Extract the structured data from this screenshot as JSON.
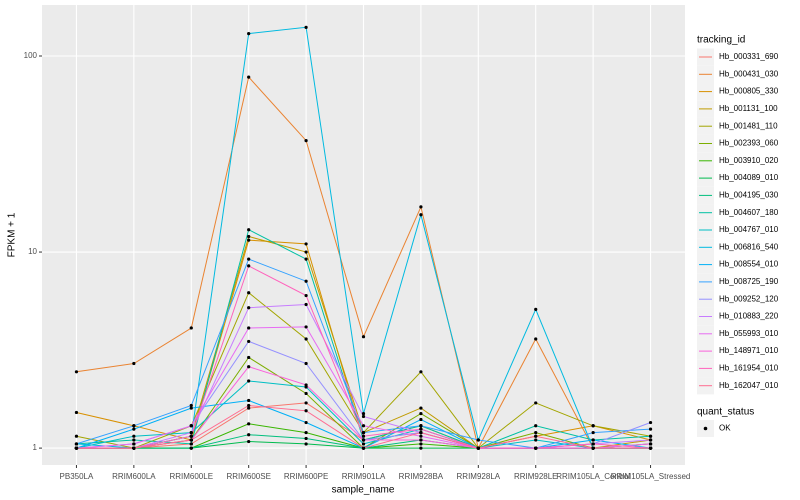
{
  "chart_data": {
    "type": "line",
    "x_label": "sample_name",
    "y_label": "FPKM + 1",
    "categories": [
      "PB350LA",
      "RRIM600LA",
      "RRIM600LE",
      "RRIM600SE",
      "RRIM600PE",
      "RRIM901LA",
      "RRIM928BA",
      "RRIM928LA",
      "RRIM928LE",
      "RRIM105LA_Control",
      "RRIM105LA_Stressed"
    ],
    "ylim": [
      0.82,
      182
    ],
    "yticks": [
      1,
      10,
      100
    ],
    "log_scale": true,
    "grid": true,
    "legend_title": "tracking_id",
    "legend_position": "right",
    "point_legend_title": "quant_status",
    "point_legend_label": "OK",
    "point_color": "#000000",
    "series": [
      {
        "name": "Hb_000331_690",
        "color": "#F8766D",
        "values": [
          1.0,
          1.0,
          1.05,
          1.6,
          1.7,
          1.1,
          1.2,
          1.0,
          1.0,
          1.0,
          1.05
        ]
      },
      {
        "name": "Hb_000431_030",
        "color": "#EA8331",
        "values": [
          2.45,
          2.7,
          4.1,
          78,
          37,
          3.7,
          17,
          1.0,
          3.6,
          1.0,
          1.0
        ]
      },
      {
        "name": "Hb_000805_330",
        "color": "#D89000",
        "values": [
          1.52,
          1.3,
          1.1,
          11.5,
          11,
          1.1,
          1.3,
          1.0,
          1.15,
          1.3,
          1.1
        ]
      },
      {
        "name": "Hb_001131_100",
        "color": "#C09B00",
        "values": [
          1.0,
          1.0,
          1.15,
          12,
          10,
          1.2,
          1.6,
          1.0,
          1.0,
          1.0,
          1.1
        ]
      },
      {
        "name": "Hb_001481_110",
        "color": "#A3A500",
        "values": [
          1.15,
          1.0,
          1.3,
          6.2,
          3.6,
          1.2,
          2.45,
          1.0,
          1.7,
          1.3,
          1.15
        ]
      },
      {
        "name": "Hb_002393_060",
        "color": "#7CAE00",
        "values": [
          1.0,
          1.0,
          1.1,
          2.9,
          1.9,
          1.0,
          1.5,
          1.0,
          1.2,
          1.0,
          1.05
        ]
      },
      {
        "name": "Hb_003910_020",
        "color": "#39B600",
        "values": [
          1.0,
          1.0,
          1.0,
          1.33,
          1.2,
          1.0,
          1.05,
          1.0,
          1.0,
          1.0,
          1.0
        ]
      },
      {
        "name": "Hb_004089_010",
        "color": "#00BB4E",
        "values": [
          1.0,
          1.0,
          1.0,
          1.08,
          1.05,
          1.0,
          1.0,
          1.0,
          1.0,
          1.0,
          1.0
        ]
      },
      {
        "name": "Hb_004195_030",
        "color": "#00BF7D",
        "values": [
          1.0,
          1.0,
          1.0,
          1.17,
          1.12,
          1.0,
          1.1,
          1.0,
          1.0,
          1.0,
          1.0
        ]
      },
      {
        "name": "Hb_004607_180",
        "color": "#00C1A3",
        "values": [
          1.05,
          1.1,
          1.05,
          13,
          9.2,
          1.1,
          1.3,
          1.0,
          1.3,
          1.1,
          1.15
        ]
      },
      {
        "name": "Hb_004767_010",
        "color": "#00BFC4",
        "values": [
          1.0,
          1.15,
          1.2,
          2.2,
          2.05,
          1.05,
          1.25,
          1.0,
          1.1,
          1.0,
          1.0
        ]
      },
      {
        "name": "Hb_006816_540",
        "color": "#00BAE0",
        "values": [
          1.05,
          1.0,
          1.15,
          130,
          140,
          1.5,
          15.5,
          1.1,
          5.1,
          1.0,
          1.0
        ]
      },
      {
        "name": "Hb_008554_010",
        "color": "#00B0F6",
        "values": [
          1.0,
          1.25,
          1.6,
          1.75,
          1.35,
          1.0,
          1.4,
          1.0,
          1.0,
          1.1,
          1.0
        ]
      },
      {
        "name": "Hb_008725_190",
        "color": "#35A2FF",
        "values": [
          1.05,
          1.3,
          1.65,
          9.2,
          7.1,
          1.2,
          1.3,
          1.1,
          1.0,
          1.2,
          1.25
        ]
      },
      {
        "name": "Hb_009252_120",
        "color": "#9590FF",
        "values": [
          1.0,
          1.05,
          1.3,
          3.5,
          2.7,
          1.1,
          1.2,
          1.0,
          1.0,
          1.05,
          1.35
        ]
      },
      {
        "name": "Hb_010883_220",
        "color": "#C77CFF",
        "values": [
          1.0,
          1.0,
          1.2,
          5.2,
          5.4,
          1.45,
          1.2,
          1.0,
          1.0,
          1.05,
          1.1
        ]
      },
      {
        "name": "Hb_055993_010",
        "color": "#E76BF3",
        "values": [
          1.0,
          1.05,
          1.3,
          4.1,
          4.15,
          1.3,
          1.15,
          1.0,
          1.0,
          1.0,
          1.05
        ]
      },
      {
        "name": "Hb_148971_010",
        "color": "#FA62DB",
        "values": [
          1.0,
          1.0,
          1.1,
          2.6,
          2.1,
          1.1,
          1.1,
          1.0,
          1.0,
          1.0,
          1.0
        ]
      },
      {
        "name": "Hb_161954_010",
        "color": "#FF62BC",
        "values": [
          1.0,
          1.0,
          1.15,
          8.5,
          6.0,
          1.15,
          1.25,
          1.0,
          1.0,
          1.05,
          1.0
        ]
      },
      {
        "name": "Hb_162047_010",
        "color": "#FF6C91",
        "values": [
          1.0,
          1.0,
          1.1,
          1.65,
          1.55,
          1.0,
          1.2,
          1.0,
          1.15,
          1.0,
          1.0
        ]
      }
    ]
  }
}
